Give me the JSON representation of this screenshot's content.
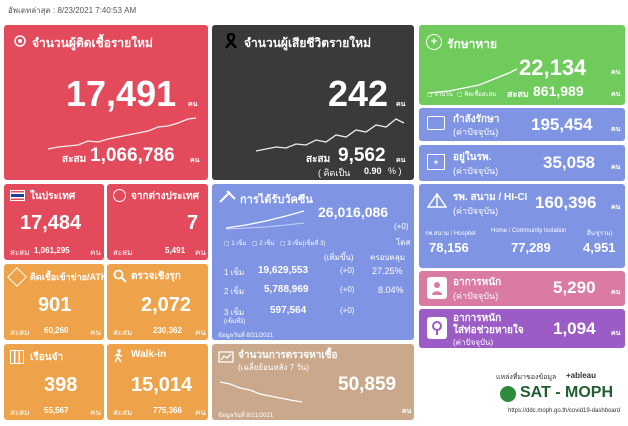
{
  "header": {
    "updated_label": "อัพเดทล่าสุด :",
    "updated_value": "8/23/2021 7:40:53 AM"
  },
  "colors": {
    "red": "#e34b5c",
    "dark": "#3a3a3a",
    "green": "#6fcc5c",
    "blue": "#7f94e3",
    "pink": "#d97ba3",
    "orange": "#eea34b",
    "tan": "#c9a88b",
    "purple": "#9c5cc5"
  },
  "new_cases": {
    "title": "จำนวนผู้ติดเชื้อรายใหม่",
    "value": "17,491",
    "unit": "คน",
    "cum_label": "สะสม",
    "cum_value": "1,066,786",
    "cum_unit": "คน"
  },
  "deaths": {
    "title": "จำนวนผู้เสียชีวิตรายใหม่",
    "value": "242",
    "unit": "คน",
    "cum_label": "สะสม",
    "cum_value": "9,562",
    "cum_unit": "คน",
    "pct_label": "( คิดเป็น",
    "pct_value": "0.90",
    "pct_unit": "% )"
  },
  "recovered": {
    "title": "รักษาหาย",
    "value": "22,134",
    "unit": "คน",
    "legend_a": "จำนวน",
    "legend_b": "ติดเชื้อสะสม",
    "cum_label": "สะสม",
    "cum_value": "861,989",
    "cum_unit": "คน"
  },
  "treating": {
    "title": "กำลังรักษา",
    "sub": "(ค่าปัจจุบัน)",
    "value": "195,454",
    "unit": "คน"
  },
  "hospital": {
    "title": "อยู่ในรพ.",
    "sub": "(ค่าปัจจุบัน)",
    "value": "35,058",
    "unit": "คน"
  },
  "field": {
    "title": "รพ. สนาม / HI-CI",
    "sub": "(ค่าปัจจุบัน)",
    "value": "160,396",
    "unit": "คน",
    "cols": [
      {
        "label": "รพ.สนาม / Hospitel",
        "value": "78,156"
      },
      {
        "label": "Home / Community Isolation",
        "value": "77,289"
      },
      {
        "label": "อื่นๆ(รวม)",
        "value": "4,951"
      }
    ]
  },
  "severe": {
    "title": "อาการหนัก",
    "sub": "(ค่าปัจจุบัน)",
    "value": "5,290",
    "unit": "คน"
  },
  "ventilator": {
    "title": "อาการหนัก",
    "title2": "ใส่ท่อช่วยหายใจ",
    "sub": "(ค่าปัจจุบัน)",
    "value": "1,094",
    "unit": "คน"
  },
  "domestic": {
    "title": "ในประเทศ",
    "value": "17,484",
    "unit": "คน",
    "cum_label": "สะสม",
    "cum_value": "1,061,295",
    "cum_unit": "คน"
  },
  "abroad": {
    "title": "จากต่างประเทศ",
    "value": "7",
    "unit": "คน",
    "cum_label": "สะสม",
    "cum_value": "5,491",
    "cum_unit": "คน"
  },
  "prison_atk": {
    "title": "ติดเชื้อเข้าข่าย/ATK",
    "value": "901",
    "unit": "คน",
    "cum_label": "สะสม",
    "cum_value": "60,260",
    "cum_unit": "คน"
  },
  "active_search": {
    "title": "ตรวจเชิงรุก",
    "value": "2,072",
    "unit": "คน",
    "cum_label": "สะสม",
    "cum_value": "230,362",
    "cum_unit": "คน"
  },
  "prison": {
    "title": "เรือนจำ",
    "value": "398",
    "unit": "คน",
    "cum_label": "สะสม",
    "cum_value": "55,567",
    "cum_unit": "คน"
  },
  "walkin": {
    "title": "Walk-in",
    "value": "15,014",
    "unit": "คน",
    "cum_label": "สะสม",
    "cum_value": "775,366",
    "cum_unit": "คน"
  },
  "vaccine": {
    "title": "การได้รับวัคซีน",
    "total": "26,016,086",
    "delta": "(+0)",
    "unit": "โดส",
    "legend": [
      "1 เข็ม",
      "2 เข็ม",
      "3 เข็ม(เข็มที่ 3)"
    ],
    "col_delta": "(เพิ่มขึ้น)",
    "col_cover": "ครอบคลุม",
    "rows": [
      {
        "dose": "1 เข็ม",
        "value": "19,629,553",
        "delta": "(+0)",
        "cover": "27.25%"
      },
      {
        "dose": "2 เข็ม",
        "value": "5,788,969",
        "delta": "(+0)",
        "cover": "8.04%"
      },
      {
        "dose": "3 เข็ม",
        "value": "597,564",
        "delta": "(+0)",
        "cover": ""
      }
    ],
    "dose3_note": "(เข็มที่3)",
    "footnote": "ข้อมูลวันที่ 8/21/2021"
  },
  "tests": {
    "title": "จำนวนการตรวจหาเชื้อ",
    "sub": "(เฉลี่ยย้อนหลัง 7 วัน)",
    "value": "50,859",
    "unit": "คน",
    "footnote": "ข้อมูลวันที่ 8/21/2021"
  },
  "source": {
    "label": "แหล่งที่มาของข้อมูล",
    "tableau": "+ableau",
    "brand": "SAT - MOPH",
    "url": "https://ddc.moph.go.th/covid19-dashboard"
  }
}
